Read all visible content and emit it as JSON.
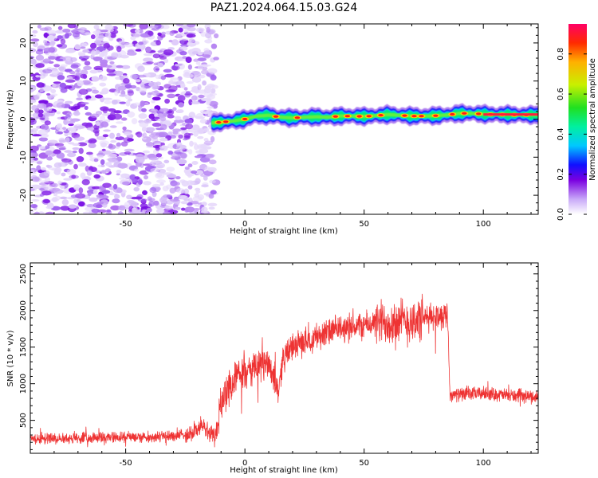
{
  "title": "PAZ1.2024.064.15.03.G24",
  "chart_data": [
    {
      "type": "heatmap",
      "xlabel": "Height of straight line (km)",
      "ylabel": "Frequency (Hz)",
      "xlim": [
        -90,
        123
      ],
      "ylim": [
        -25,
        25
      ],
      "xticks": [
        -50,
        0,
        50,
        100
      ],
      "yticks": [
        -20,
        -10,
        0,
        10,
        20
      ],
      "colorbar": {
        "label": "Normalized spectral amplitude",
        "range": [
          0,
          0.95
        ],
        "ticks": [
          0.0,
          0.2,
          0.4,
          0.6,
          0.8
        ]
      },
      "ridge": {
        "x": [
          -14,
          -10,
          -5,
          0,
          5,
          10,
          15,
          20,
          25,
          30,
          35,
          40,
          45,
          50,
          55,
          60,
          65,
          70,
          75,
          80,
          85,
          90,
          95,
          100,
          105,
          110,
          115,
          120,
          123
        ],
        "frequency": [
          -1.0,
          -0.8,
          -0.5,
          0.0,
          0.8,
          1.0,
          0.5,
          0.3,
          0.5,
          0.6,
          0.5,
          0.8,
          0.8,
          0.7,
          0.9,
          1.2,
          1.0,
          0.8,
          0.8,
          0.9,
          1.1,
          1.5,
          1.5,
          1.3,
          1.2,
          1.2,
          1.1,
          1.1,
          1.1
        ]
      },
      "noise_region_x": [
        -90,
        -14
      ]
    },
    {
      "type": "line",
      "xlabel": "Height of straight line (km)",
      "ylabel": "SNR (10 * v/v)",
      "xlim": [
        -90,
        123
      ],
      "ylim": [
        50,
        2650
      ],
      "xticks": [
        -50,
        0,
        50,
        100
      ],
      "yticks": [
        500,
        1000,
        1500,
        2000,
        2500
      ],
      "color": "#ee3333",
      "trend": {
        "x": [
          -90,
          -70,
          -50,
          -30,
          -22,
          -18,
          -15,
          -12,
          -10,
          -5,
          0,
          5,
          10,
          14,
          16,
          20,
          30,
          40,
          50,
          60,
          70,
          80,
          85,
          86,
          90,
          100,
          110,
          123
        ],
        "snr": [
          250,
          260,
          270,
          280,
          330,
          430,
          330,
          310,
          750,
          1050,
          1150,
          1200,
          1300,
          900,
          1350,
          1500,
          1650,
          1750,
          1800,
          1850,
          1850,
          1920,
          1950,
          850,
          850,
          870,
          840,
          820
        ]
      }
    }
  ]
}
